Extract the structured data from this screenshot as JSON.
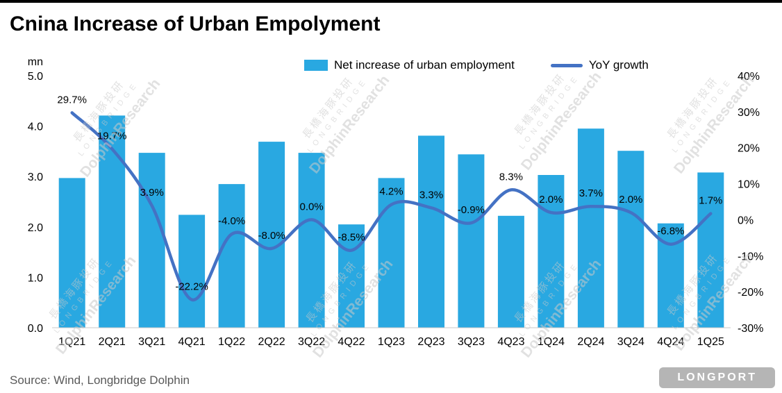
{
  "header": {
    "title": "Cnina Increase of Urban Empolyment"
  },
  "legend": [
    {
      "label": "Net increase of urban employment",
      "type": "bar"
    },
    {
      "label": "YoY growth",
      "type": "line"
    }
  ],
  "footer": {
    "source": "Source: Wind, Longbridge Dolphin",
    "brand": "LONGPORT"
  },
  "watermark": {
    "lines": [
      "長橋海豚投研",
      "LONGBRIDGE",
      "DolphinResearch"
    ]
  },
  "chart_data": {
    "type": "bar+line",
    "title": "Cnina Increase of Urban Empolyment",
    "categories": [
      "1Q21",
      "2Q21",
      "3Q21",
      "4Q21",
      "1Q22",
      "2Q22",
      "3Q22",
      "4Q22",
      "1Q23",
      "2Q23",
      "3Q23",
      "4Q23",
      "1Q24",
      "2Q24",
      "3Q24",
      "4Q24",
      "1Q25"
    ],
    "series": [
      {
        "name": "Net increase of urban employment",
        "type": "bar",
        "axis": "left",
        "unit": "mn",
        "values": [
          2.97,
          4.21,
          3.47,
          2.24,
          2.85,
          3.69,
          3.47,
          2.05,
          2.97,
          3.81,
          3.44,
          2.22,
          3.03,
          3.95,
          3.51,
          2.07,
          3.08
        ]
      },
      {
        "name": "YoY growth",
        "type": "line",
        "axis": "right",
        "unit": "%",
        "values": [
          29.7,
          19.7,
          3.9,
          -22.2,
          -4.0,
          -8.0,
          0.0,
          -8.5,
          4.2,
          3.3,
          -0.9,
          8.3,
          2.0,
          3.7,
          2.0,
          -6.8,
          1.7
        ],
        "labels": [
          "29.7%",
          "19.7%",
          "3.9%",
          "-22.2%",
          "-4.0%",
          "-8.0%",
          "0.0%",
          "-8.5%",
          "4.2%",
          "3.3%",
          "-0.9%",
          "8.3%",
          "2.0%",
          "3.7%",
          "2.0%",
          "-6.8%",
          "1.7%"
        ]
      }
    ],
    "left_axis": {
      "label": "mn",
      "min": 0,
      "max": 5,
      "ticks": [
        "0.0",
        "1.0",
        "2.0",
        "3.0",
        "4.0",
        "5.0"
      ]
    },
    "right_axis": {
      "min": -30,
      "max": 40,
      "ticks": [
        "40%",
        "30%",
        "20%",
        "10%",
        "0%",
        "-10%",
        "-20%",
        "-30%"
      ]
    },
    "grid": false,
    "legend_position": "top",
    "colors": {
      "bar": "#29A8E1",
      "line": "#4472C4",
      "axis_text": "#000000",
      "source_text": "#595959"
    }
  }
}
